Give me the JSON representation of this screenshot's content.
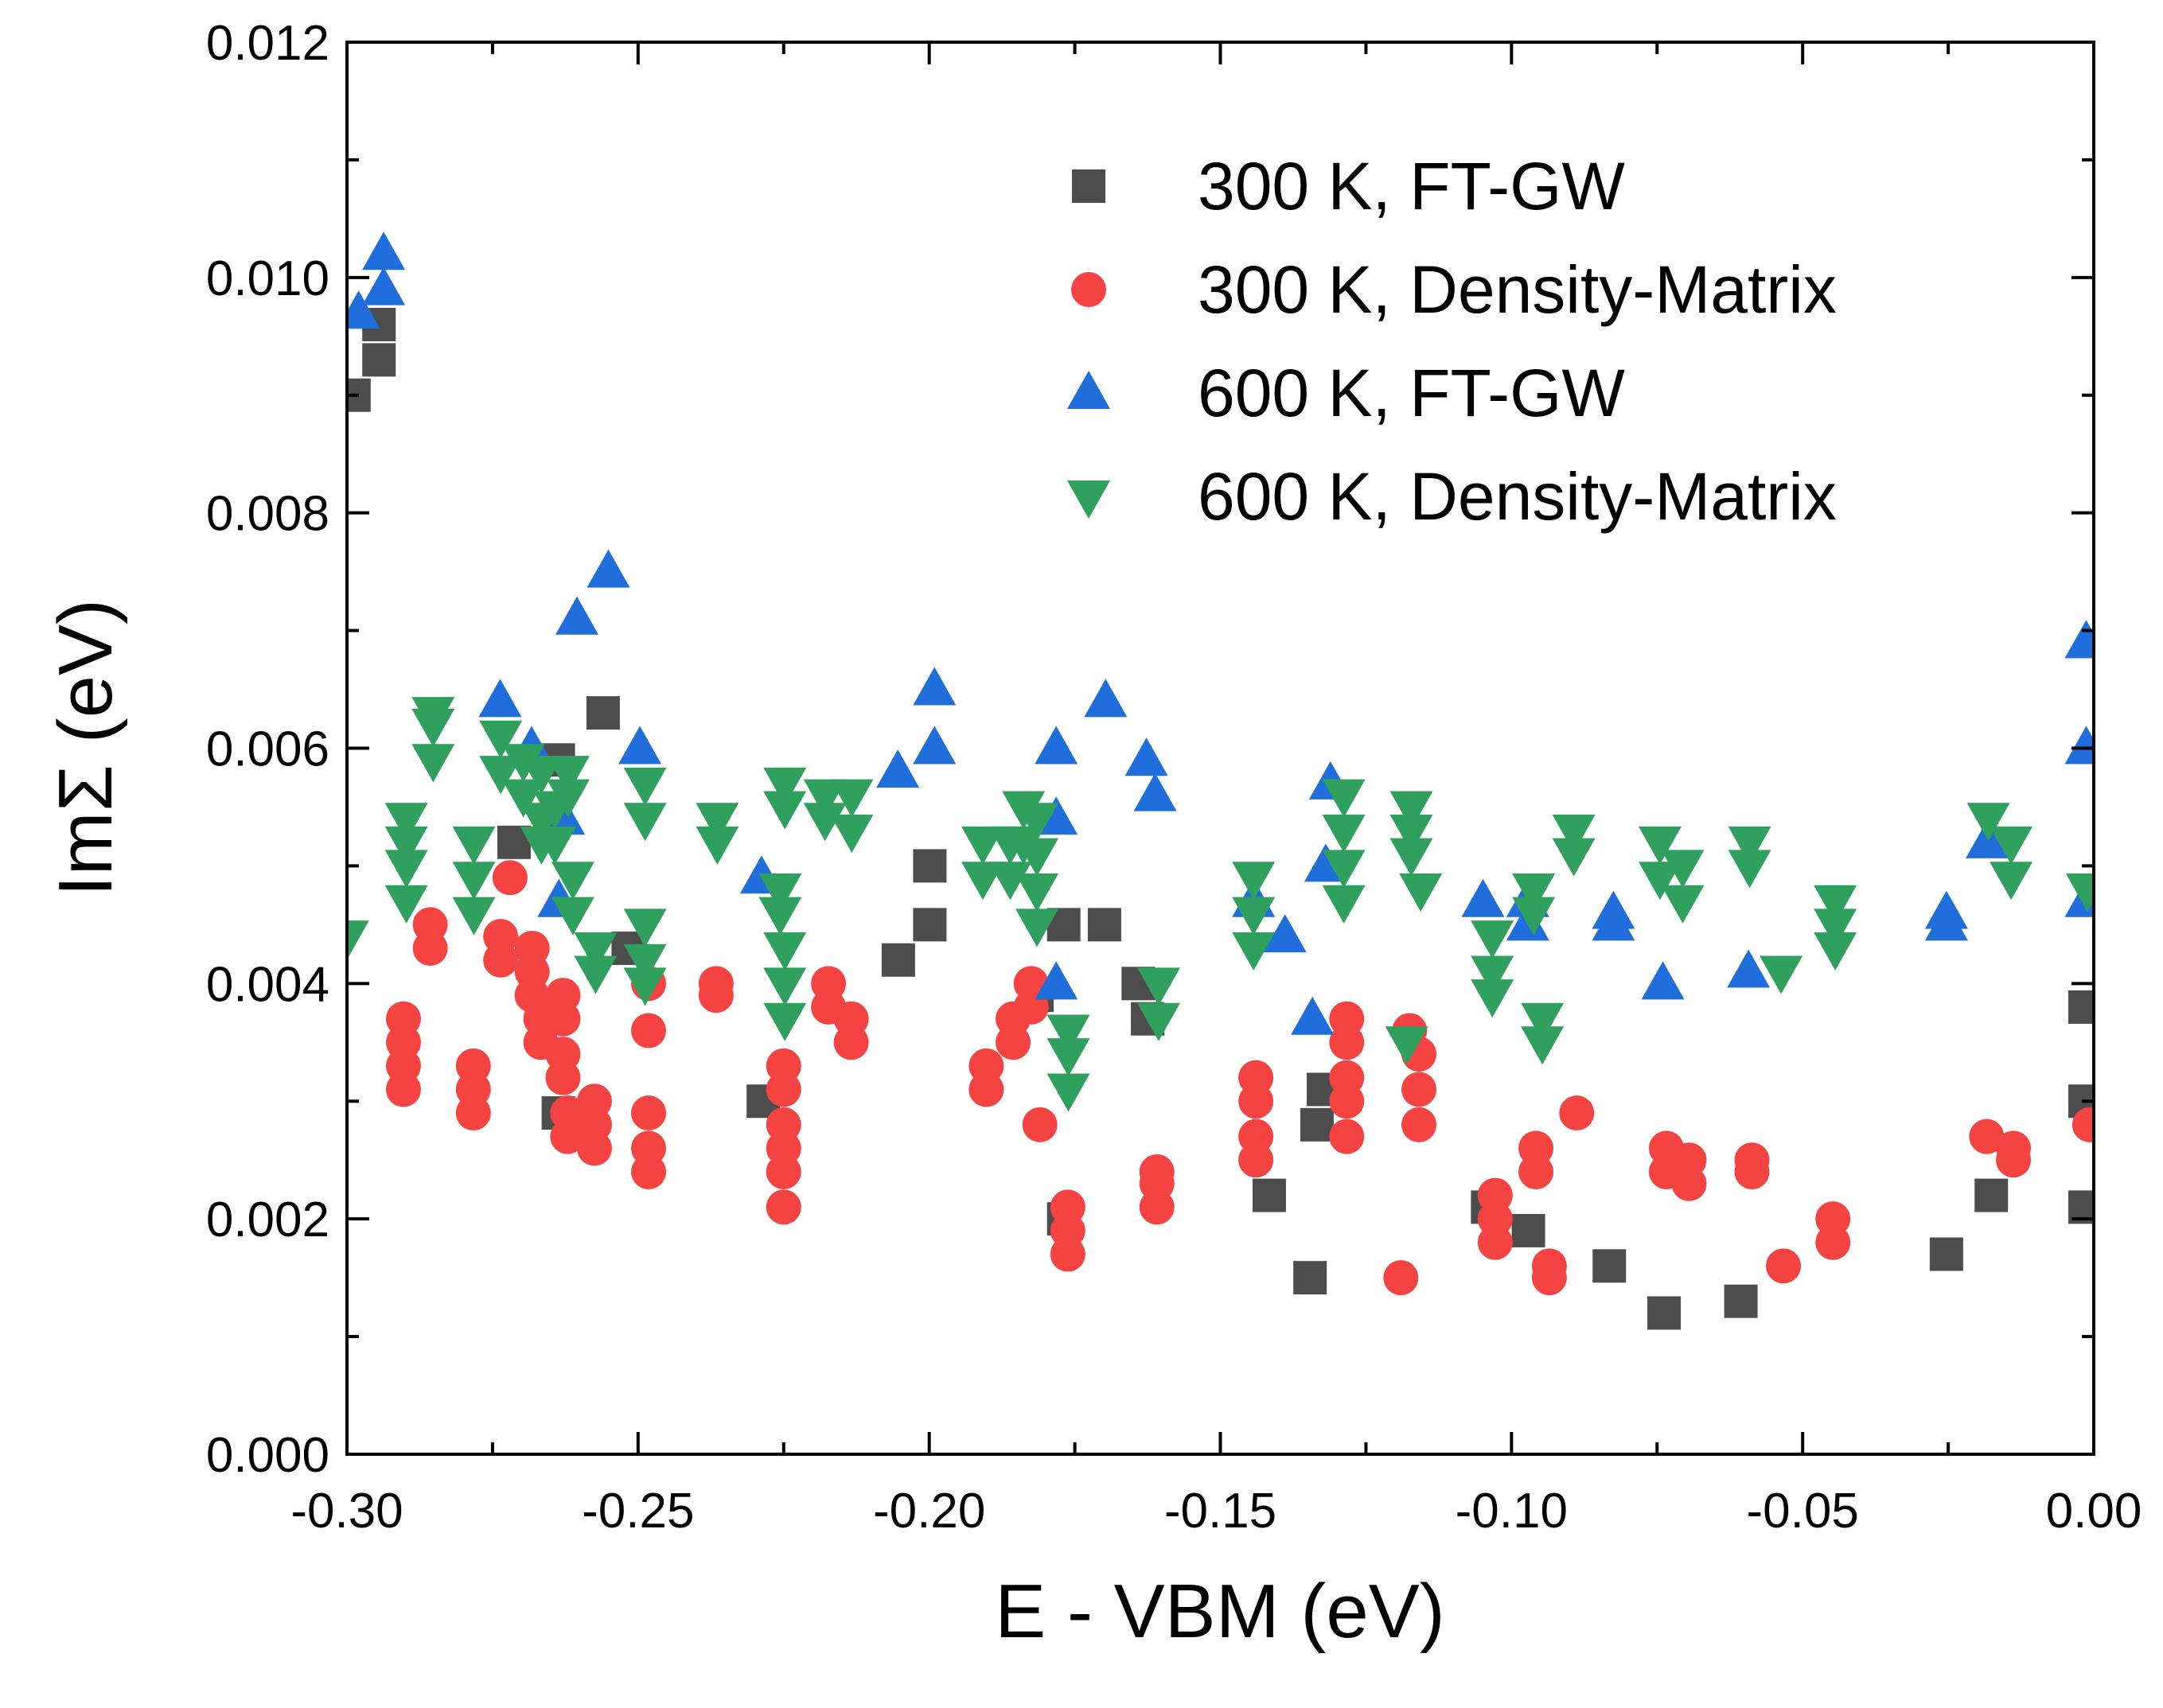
{
  "chart_data": {
    "type": "scatter",
    "title": "",
    "xlabel": "E - VBM (eV)",
    "ylabel": "ImΣ (eV)",
    "xlim": [
      -0.3,
      0.0
    ],
    "ylim": [
      0.0,
      0.012
    ],
    "x_ticks": [
      -0.3,
      -0.25,
      -0.2,
      -0.15,
      -0.1,
      -0.05,
      0.0
    ],
    "x_tick_labels": [
      "-0.30",
      "-0.25",
      "-0.20",
      "-0.15",
      "-0.10",
      "-0.05",
      "0.00"
    ],
    "y_ticks": [
      0.0,
      0.002,
      0.004,
      0.006,
      0.008,
      0.01,
      0.012
    ],
    "y_tick_labels": [
      "0.000",
      "0.002",
      "0.004",
      "0.006",
      "0.008",
      "0.010",
      "0.012"
    ],
    "grid": false,
    "legend_position": "top-right",
    "series": [
      {
        "name": "300 K, FT-GW",
        "marker": "square",
        "color": "#4d4d4d",
        "points": [
          [
            -0.2988,
            0.009
          ],
          [
            -0.2945,
            0.0096
          ],
          [
            -0.2945,
            0.0093
          ],
          [
            -0.2713,
            0.0052
          ],
          [
            -0.2637,
            0.0059
          ],
          [
            -0.2637,
            0.0029
          ],
          [
            -0.256,
            0.0063
          ],
          [
            -0.2517,
            0.0043
          ],
          [
            -0.2285,
            0.003
          ],
          [
            -0.2053,
            0.0042
          ],
          [
            -0.1999,
            0.005
          ],
          [
            -0.1999,
            0.0045
          ],
          [
            -0.1815,
            0.0039
          ],
          [
            -0.1769,
            0.0045
          ],
          [
            -0.1769,
            0.002
          ],
          [
            -0.1699,
            0.0045
          ],
          [
            -0.1641,
            0.004
          ],
          [
            -0.1625,
            0.0037
          ],
          [
            -0.1416,
            0.0022
          ],
          [
            -0.1346,
            0.0015
          ],
          [
            -0.1323,
            0.0031
          ],
          [
            -0.1334,
            0.0028
          ],
          [
            -0.1041,
            0.0021
          ],
          [
            -0.0971,
            0.0019
          ],
          [
            -0.0832,
            0.0016
          ],
          [
            -0.0738,
            0.0012
          ],
          [
            -0.0606,
            0.0013
          ],
          [
            -0.0253,
            0.0017
          ],
          [
            -0.0176,
            0.0022
          ],
          [
            -0.0015,
            0.0038
          ],
          [
            -0.0015,
            0.003
          ],
          [
            -0.0015,
            0.0021
          ]
        ]
      },
      {
        "name": "300 K, Density-Matrix",
        "marker": "circle",
        "color": "#f54342",
        "points": [
          [
            -0.2857,
            0.0045
          ],
          [
            -0.2857,
            0.0043
          ],
          [
            -0.2903,
            0.0037
          ],
          [
            -0.2903,
            0.0035
          ],
          [
            -0.2903,
            0.0033
          ],
          [
            -0.2903,
            0.0031
          ],
          [
            -0.2783,
            0.0033
          ],
          [
            -0.2783,
            0.0031
          ],
          [
            -0.2783,
            0.0029
          ],
          [
            -0.272,
            0.0049
          ],
          [
            -0.2736,
            0.0044
          ],
          [
            -0.2736,
            0.0042
          ],
          [
            -0.2682,
            0.0043
          ],
          [
            -0.2682,
            0.0041
          ],
          [
            -0.2682,
            0.0039
          ],
          [
            -0.2667,
            0.0037
          ],
          [
            -0.2667,
            0.0035
          ],
          [
            -0.2629,
            0.0039
          ],
          [
            -0.2629,
            0.0037
          ],
          [
            -0.2629,
            0.0034
          ],
          [
            -0.2629,
            0.0032
          ],
          [
            -0.2621,
            0.0029
          ],
          [
            -0.2621,
            0.0027
          ],
          [
            -0.2575,
            0.003
          ],
          [
            -0.2575,
            0.0028
          ],
          [
            -0.2575,
            0.0026
          ],
          [
            -0.2482,
            0.004
          ],
          [
            -0.2482,
            0.0036
          ],
          [
            -0.2482,
            0.0029
          ],
          [
            -0.2482,
            0.0026
          ],
          [
            -0.2482,
            0.0024
          ],
          [
            -0.2366,
            0.004
          ],
          [
            -0.2366,
            0.0039
          ],
          [
            -0.225,
            0.0033
          ],
          [
            -0.225,
            0.0031
          ],
          [
            -0.225,
            0.0028
          ],
          [
            -0.225,
            0.0026
          ],
          [
            -0.225,
            0.0024
          ],
          [
            -0.225,
            0.0021
          ],
          [
            -0.2173,
            0.004
          ],
          [
            -0.2173,
            0.0038
          ],
          [
            -0.2134,
            0.0037
          ],
          [
            -0.2134,
            0.0035
          ],
          [
            -0.1902,
            0.0033
          ],
          [
            -0.1902,
            0.0031
          ],
          [
            -0.1856,
            0.0037
          ],
          [
            -0.1856,
            0.0035
          ],
          [
            -0.1825,
            0.004
          ],
          [
            -0.1825,
            0.0038
          ],
          [
            -0.181,
            0.0028
          ],
          [
            -0.1762,
            0.0021
          ],
          [
            -0.1762,
            0.0019
          ],
          [
            -0.1762,
            0.0017
          ],
          [
            -0.1609,
            0.0024
          ],
          [
            -0.1609,
            0.0023
          ],
          [
            -0.1609,
            0.0021
          ],
          [
            -0.1439,
            0.0032
          ],
          [
            -0.1439,
            0.003
          ],
          [
            -0.1439,
            0.0027
          ],
          [
            -0.1439,
            0.0025
          ],
          [
            -0.1283,
            0.0037
          ],
          [
            -0.1283,
            0.0035
          ],
          [
            -0.1283,
            0.0032
          ],
          [
            -0.1283,
            0.003
          ],
          [
            -0.1283,
            0.0027
          ],
          [
            -0.119,
            0.0015
          ],
          [
            -0.1175,
            0.0036
          ],
          [
            -0.1159,
            0.0034
          ],
          [
            -0.1159,
            0.0031
          ],
          [
            -0.1159,
            0.0028
          ],
          [
            -0.1028,
            0.0022
          ],
          [
            -0.1028,
            0.002
          ],
          [
            -0.1028,
            0.0018
          ],
          [
            -0.0958,
            0.0026
          ],
          [
            -0.0958,
            0.0024
          ],
          [
            -0.0935,
            0.0016
          ],
          [
            -0.0935,
            0.0015
          ],
          [
            -0.0888,
            0.0029
          ],
          [
            -0.0734,
            0.0026
          ],
          [
            -0.0734,
            0.0024
          ],
          [
            -0.0695,
            0.0025
          ],
          [
            -0.0695,
            0.0023
          ],
          [
            -0.0587,
            0.0025
          ],
          [
            -0.0587,
            0.0024
          ],
          [
            -0.0533,
            0.0016
          ],
          [
            -0.0448,
            0.002
          ],
          [
            -0.0448,
            0.0018
          ],
          [
            -0.0184,
            0.0027
          ],
          [
            -0.0138,
            0.0026
          ],
          [
            -0.0138,
            0.0025
          ],
          [
            -0.0007,
            0.0028
          ]
        ]
      },
      {
        "name": "600 K, FT-GW",
        "marker": "triangle-up",
        "color": "#1f6edc",
        "points": [
          [
            -0.298,
            0.0097
          ],
          [
            -0.2937,
            0.0102
          ],
          [
            -0.2937,
            0.0099
          ],
          [
            -0.2737,
            0.0064
          ],
          [
            -0.2683,
            0.006
          ],
          [
            -0.2636,
            0.0047
          ],
          [
            -0.2628,
            0.0054
          ],
          [
            -0.2605,
            0.0071
          ],
          [
            -0.2551,
            0.0075
          ],
          [
            -0.2497,
            0.006
          ],
          [
            -0.2288,
            0.0049
          ],
          [
            -0.2054,
            0.0058
          ],
          [
            -0.1991,
            0.0065
          ],
          [
            -0.1991,
            0.006
          ],
          [
            -0.1782,
            0.006
          ],
          [
            -0.1782,
            0.0054
          ],
          [
            -0.1782,
            0.004
          ],
          [
            -0.1697,
            0.0064
          ],
          [
            -0.1627,
            0.0059
          ],
          [
            -0.1612,
            0.0056
          ],
          [
            -0.1443,
            0.0047
          ],
          [
            -0.1389,
            0.0044
          ],
          [
            -0.1342,
            0.0037
          ],
          [
            -0.1311,
            0.0057
          ],
          [
            -0.1319,
            0.005
          ],
          [
            -0.1049,
            0.0047
          ],
          [
            -0.0972,
            0.0047
          ],
          [
            -0.0972,
            0.0045
          ],
          [
            -0.0825,
            0.0046
          ],
          [
            -0.0825,
            0.0045
          ],
          [
            -0.074,
            0.004
          ],
          [
            -0.0593,
            0.0041
          ],
          [
            -0.0253,
            0.0046
          ],
          [
            -0.0253,
            0.0045
          ],
          [
            -0.0183,
            0.0052
          ],
          [
            -0.0013,
            0.0069
          ],
          [
            -0.0013,
            0.006
          ],
          [
            -0.0013,
            0.0047
          ]
        ]
      },
      {
        "name": "600 K, Density-Matrix",
        "marker": "triangle-down",
        "color": "#2fa05d",
        "points": [
          [
            -0.2999,
            0.0044
          ],
          [
            -0.2898,
            0.0054
          ],
          [
            -0.2898,
            0.0052
          ],
          [
            -0.2898,
            0.005
          ],
          [
            -0.2898,
            0.0047
          ],
          [
            -0.2852,
            0.0063
          ],
          [
            -0.2852,
            0.0062
          ],
          [
            -0.2852,
            0.0059
          ],
          [
            -0.2782,
            0.0052
          ],
          [
            -0.2782,
            0.0049
          ],
          [
            -0.2782,
            0.0046
          ],
          [
            -0.2736,
            0.0061
          ],
          [
            -0.2736,
            0.0058
          ],
          [
            -0.2697,
            0.0059
          ],
          [
            -0.2697,
            0.0056
          ],
          [
            -0.2666,
            0.0058
          ],
          [
            -0.2666,
            0.0054
          ],
          [
            -0.2666,
            0.0052
          ],
          [
            -0.2643,
            0.0055
          ],
          [
            -0.2643,
            0.0052
          ],
          [
            -0.262,
            0.0058
          ],
          [
            -0.262,
            0.0056
          ],
          [
            -0.2612,
            0.0049
          ],
          [
            -0.2612,
            0.0046
          ],
          [
            -0.2573,
            0.0043
          ],
          [
            -0.2573,
            0.0041
          ],
          [
            -0.2488,
            0.0057
          ],
          [
            -0.2488,
            0.0054
          ],
          [
            -0.2488,
            0.0045
          ],
          [
            -0.2488,
            0.0042
          ],
          [
            -0.2488,
            0.004
          ],
          [
            -0.2364,
            0.0054
          ],
          [
            -0.2364,
            0.0052
          ],
          [
            -0.2256,
            0.0048
          ],
          [
            -0.2256,
            0.0046
          ],
          [
            -0.2248,
            0.0057
          ],
          [
            -0.2248,
            0.0055
          ],
          [
            -0.2248,
            0.0043
          ],
          [
            -0.2248,
            0.004
          ],
          [
            -0.2248,
            0.0037
          ],
          [
            -0.2179,
            0.0056
          ],
          [
            -0.2179,
            0.0054
          ],
          [
            -0.2133,
            0.0056
          ],
          [
            -0.2133,
            0.0053
          ],
          [
            -0.1908,
            0.0052
          ],
          [
            -0.1908,
            0.0049
          ],
          [
            -0.1861,
            0.0052
          ],
          [
            -0.1861,
            0.0049
          ],
          [
            -0.1838,
            0.0055
          ],
          [
            -0.1838,
            0.0052
          ],
          [
            -0.1815,
            0.0054
          ],
          [
            -0.1815,
            0.0051
          ],
          [
            -0.1815,
            0.0048
          ],
          [
            -0.1815,
            0.0045
          ],
          [
            -0.1761,
            0.0036
          ],
          [
            -0.1761,
            0.0034
          ],
          [
            -0.1761,
            0.0031
          ],
          [
            -0.1606,
            0.004
          ],
          [
            -0.1606,
            0.0037
          ],
          [
            -0.1443,
            0.0049
          ],
          [
            -0.1443,
            0.0046
          ],
          [
            -0.1443,
            0.0043
          ],
          [
            -0.1288,
            0.0056
          ],
          [
            -0.1288,
            0.0053
          ],
          [
            -0.1288,
            0.005
          ],
          [
            -0.1288,
            0.0047
          ],
          [
            -0.1172,
            0.0055
          ],
          [
            -0.1172,
            0.0053
          ],
          [
            -0.1172,
            0.0051
          ],
          [
            -0.1156,
            0.0048
          ],
          [
            -0.118,
            0.0035
          ],
          [
            -0.1033,
            0.0044
          ],
          [
            -0.1033,
            0.0041
          ],
          [
            -0.1033,
            0.0039
          ],
          [
            -0.0962,
            0.0048
          ],
          [
            -0.0962,
            0.0046
          ],
          [
            -0.0947,
            0.0037
          ],
          [
            -0.0947,
            0.0035
          ],
          [
            -0.0893,
            0.0053
          ],
          [
            -0.0893,
            0.0051
          ],
          [
            -0.0745,
            0.0052
          ],
          [
            -0.0745,
            0.0049
          ],
          [
            -0.0706,
            0.005
          ],
          [
            -0.0706,
            0.0047
          ],
          [
            -0.0591,
            0.0052
          ],
          [
            -0.0591,
            0.005
          ],
          [
            -0.0537,
            0.0041
          ],
          [
            -0.0444,
            0.0047
          ],
          [
            -0.0444,
            0.0045
          ],
          [
            -0.0444,
            0.0043
          ],
          [
            -0.0181,
            0.0054
          ],
          [
            -0.0142,
            0.0052
          ],
          [
            -0.0142,
            0.0049
          ],
          [
            -0.0011,
            0.0048
          ]
        ]
      }
    ]
  }
}
